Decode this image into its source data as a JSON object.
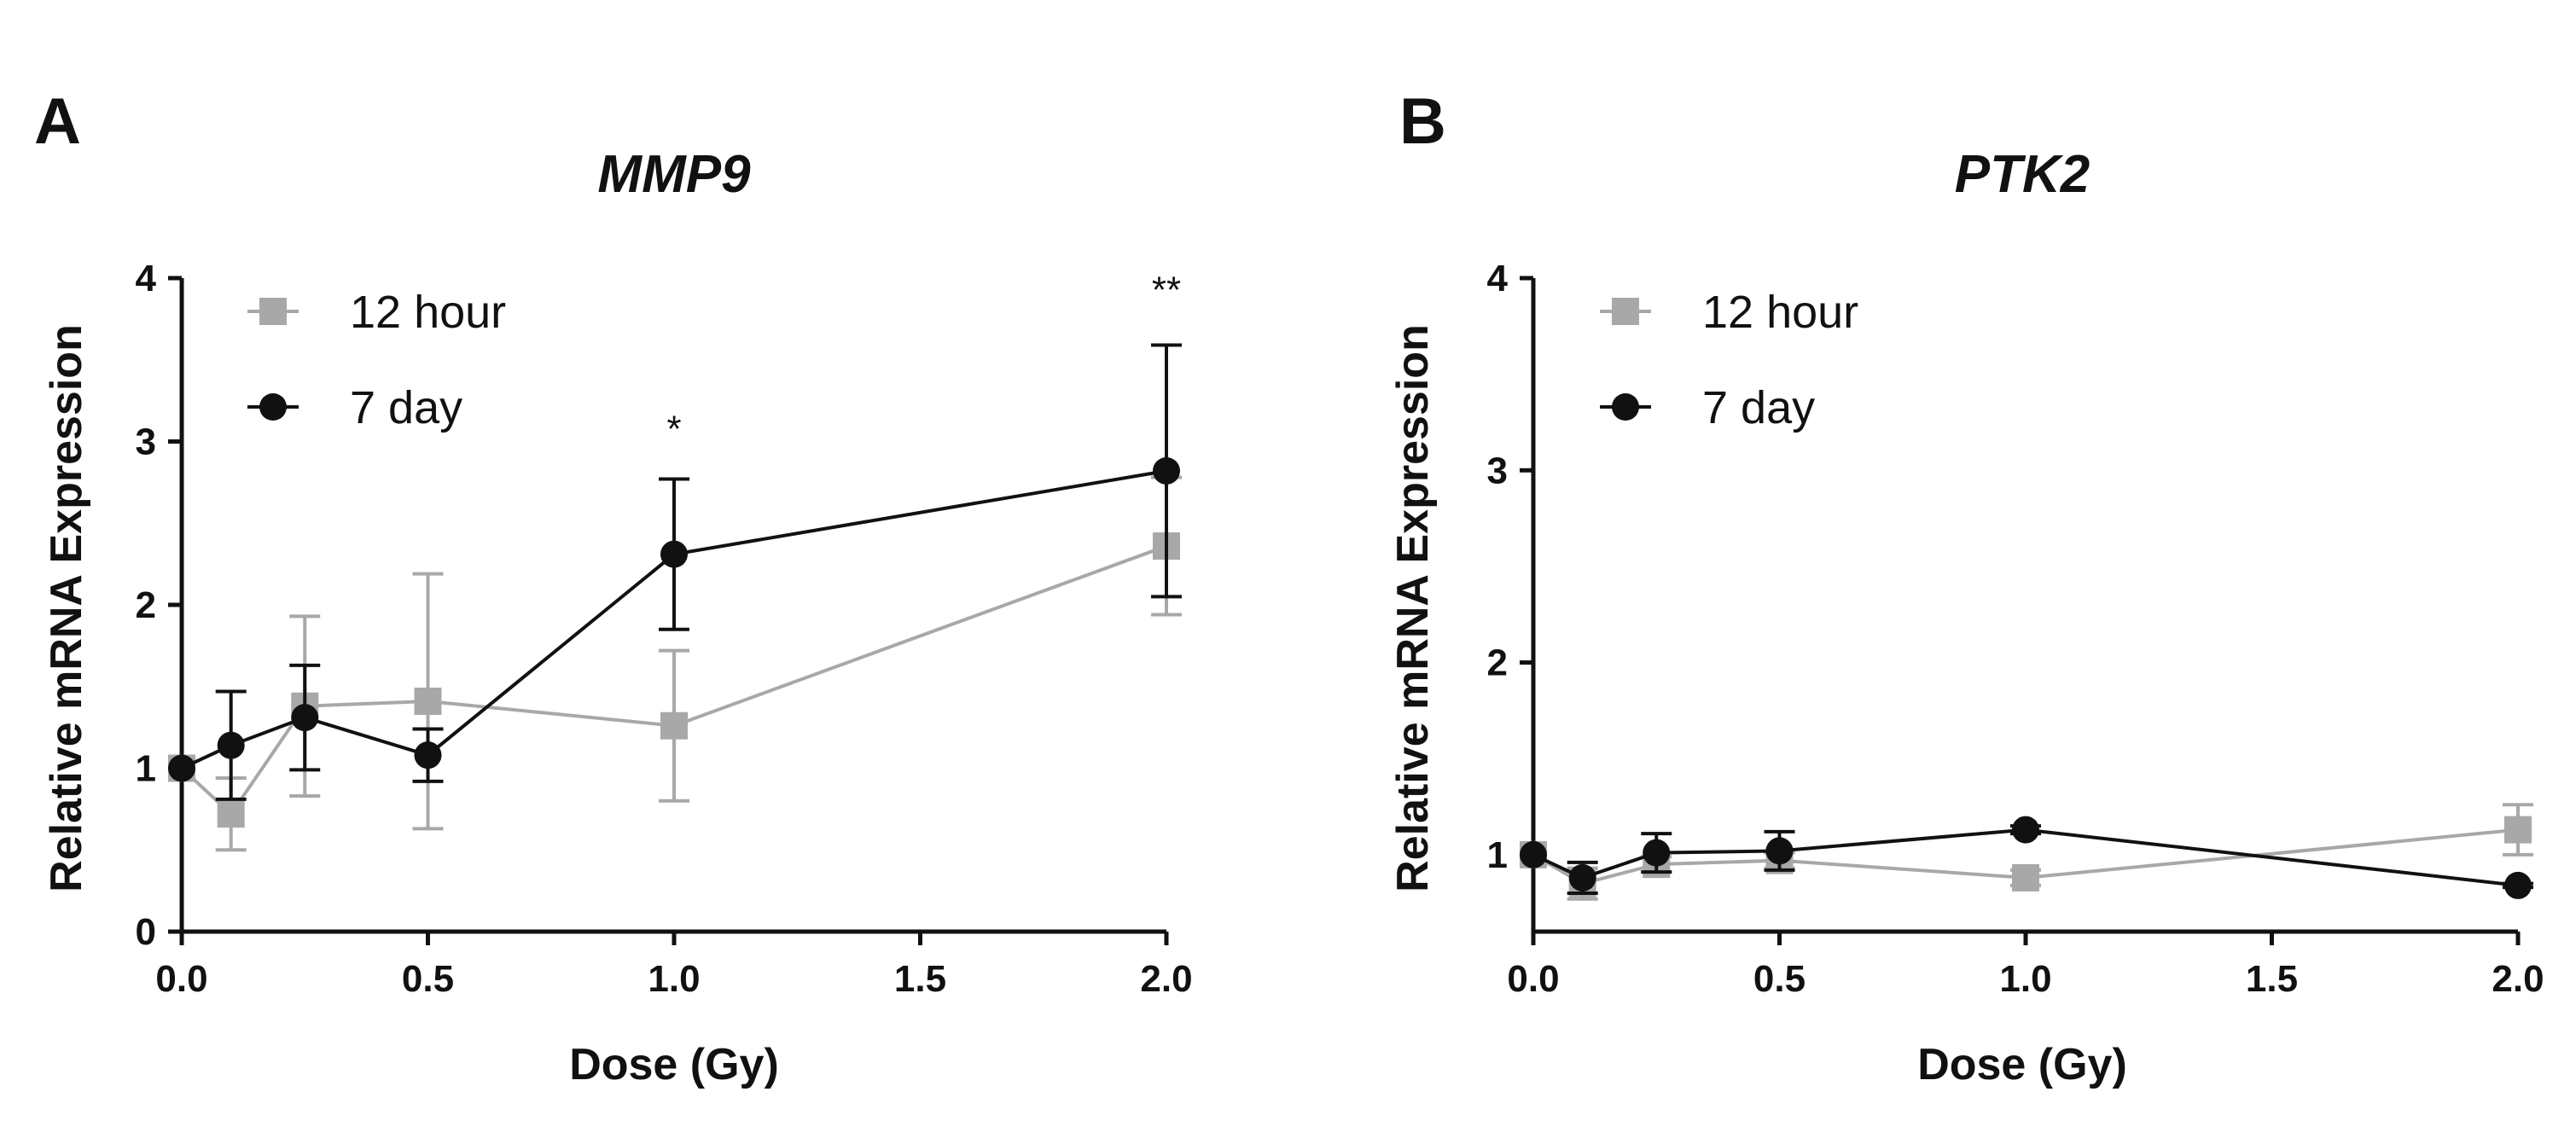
{
  "colors": {
    "h12": "#a8a8a8",
    "d7": "#111111",
    "axis": "#111111"
  },
  "chart_data": [
    {
      "type": "line",
      "panel": "A",
      "title": "MMP9",
      "xlabel": "Dose (Gy)",
      "ylabel": "Relative mRNA Expression",
      "xlim": [
        0,
        2
      ],
      "ylim": [
        0,
        4
      ],
      "xticks": [
        0,
        0.5,
        1,
        1.5,
        2
      ],
      "xtick_labels": [
        "0.0",
        "0.5",
        "1.0",
        "1.5",
        "2.0"
      ],
      "yticks": [
        0,
        1,
        2,
        3,
        4
      ],
      "ytick_labels": [
        "0",
        "1",
        "2",
        "3",
        "4"
      ],
      "series": [
        {
          "name": "12 hour",
          "key": "h12",
          "marker": "square",
          "x": [
            0,
            0.1,
            0.25,
            0.5,
            1.0,
            2.0
          ],
          "values": [
            1.0,
            0.72,
            1.38,
            1.41,
            1.26,
            2.36
          ],
          "err": [
            0.0,
            0.22,
            0.55,
            0.78,
            0.46,
            0.42
          ]
        },
        {
          "name": "7 day",
          "key": "d7",
          "marker": "circle",
          "x": [
            0,
            0.1,
            0.25,
            0.5,
            1.0,
            2.0
          ],
          "values": [
            1.0,
            1.14,
            1.31,
            1.08,
            2.31,
            2.82
          ],
          "err": [
            0.0,
            0.33,
            0.32,
            0.16,
            0.46,
            0.77
          ]
        }
      ],
      "annotations": [
        {
          "text": "*",
          "x": 1.0,
          "y": 3.0
        },
        {
          "text": "**",
          "x": 2.0,
          "y": 3.85
        }
      ],
      "legend": [
        "12 hour",
        "7 day"
      ],
      "legend_position": "top-left"
    },
    {
      "type": "line",
      "panel": "B",
      "title": "PTK2",
      "xlabel": "Dose (Gy)",
      "ylabel": "Relative mRNA Expression",
      "xlim": [
        0,
        2
      ],
      "ylim": [
        0.6,
        4
      ],
      "xticks": [
        0,
        0.5,
        1,
        1.5,
        2
      ],
      "xtick_labels": [
        "0.0",
        "0.5",
        "1.0",
        "1.5",
        "2.0"
      ],
      "yticks": [
        1,
        2,
        3,
        4
      ],
      "ytick_labels": [
        "1",
        "2",
        "3",
        "4"
      ],
      "series": [
        {
          "name": "12 hour",
          "key": "h12",
          "marker": "square",
          "x": [
            0,
            0.1,
            0.25,
            0.5,
            1.0,
            2.0
          ],
          "values": [
            1.0,
            0.85,
            0.95,
            0.97,
            0.88,
            1.13
          ],
          "err": [
            0.0,
            0.08,
            0.04,
            0.04,
            0.04,
            0.13
          ]
        },
        {
          "name": "7 day",
          "key": "d7",
          "marker": "circle",
          "x": [
            0,
            0.1,
            0.25,
            0.5,
            1.0,
            2.0
          ],
          "values": [
            1.0,
            0.88,
            1.01,
            1.02,
            1.13,
            0.84
          ],
          "err": [
            0.0,
            0.08,
            0.1,
            0.1,
            0.02,
            0.01
          ]
        }
      ],
      "annotations": [],
      "legend": [
        "12 hour",
        "7 day"
      ],
      "legend_position": "top-left"
    }
  ]
}
